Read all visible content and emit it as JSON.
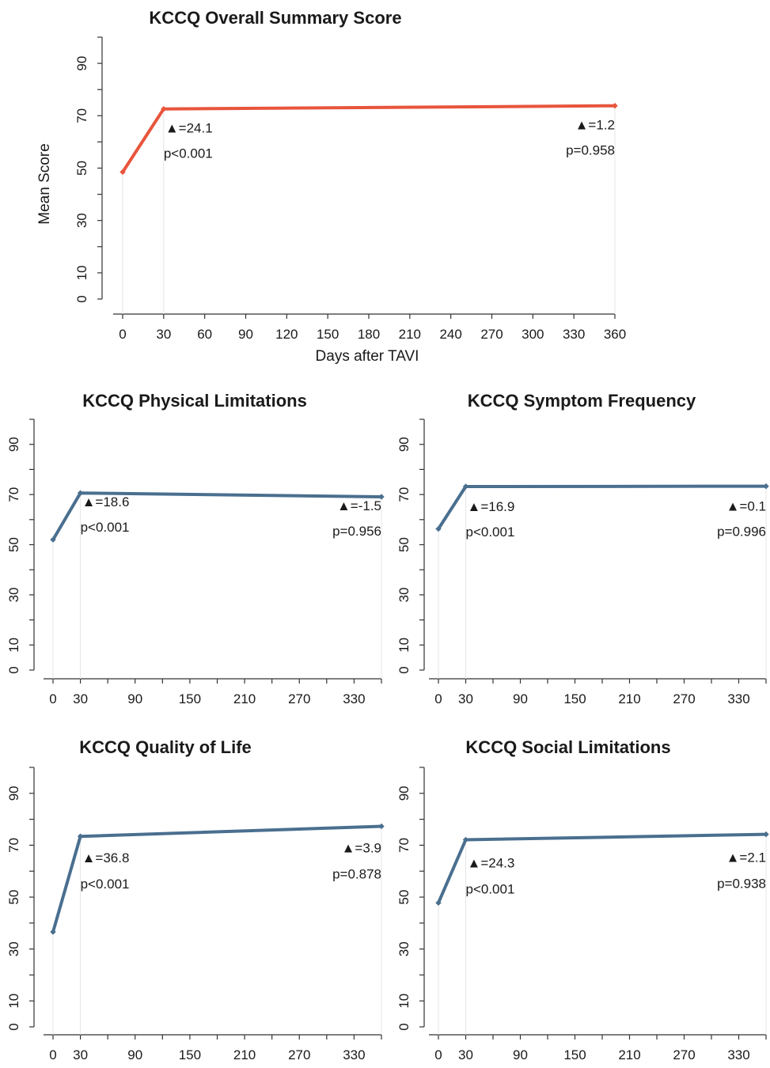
{
  "chart_data": [
    {
      "id": "overall",
      "type": "line",
      "title": "KCCQ Overall Summary Score",
      "xlabel": "Days after TAVI",
      "ylabel": "Mean Score",
      "x_ticks": [
        0,
        30,
        60,
        90,
        120,
        150,
        180,
        210,
        240,
        270,
        300,
        330,
        360
      ],
      "y_ticks": [
        0,
        10,
        30,
        50,
        70,
        90
      ],
      "xlim": [
        0,
        360
      ],
      "ylim": [
        0,
        100
      ],
      "color": "#e8553c",
      "points": [
        {
          "x": 0,
          "y": 48.5
        },
        {
          "x": 30,
          "y": 72.6
        },
        {
          "x": 360,
          "y": 73.8
        }
      ],
      "annotations": [
        {
          "x": 30,
          "delta": "▲=24.1",
          "p": "p<0.001",
          "align": "start"
        },
        {
          "x": 360,
          "delta": "▲=1.2",
          "p": "p=0.958",
          "align": "end"
        }
      ]
    },
    {
      "id": "physical",
      "type": "line",
      "title": "KCCQ Physical Limitations",
      "xlabel": "",
      "ylabel": "",
      "x_ticks": [
        0,
        30,
        90,
        150,
        210,
        270,
        330
      ],
      "y_ticks": [
        0,
        10,
        30,
        50,
        70,
        90
      ],
      "xlim": [
        0,
        360
      ],
      "ylim": [
        0,
        100
      ],
      "color": "#4a6f8f",
      "points": [
        {
          "x": 0,
          "y": 52
        },
        {
          "x": 30,
          "y": 70.6
        },
        {
          "x": 360,
          "y": 69.1
        }
      ],
      "annotations": [
        {
          "x": 30,
          "delta": "▲=18.6",
          "p": "p<0.001",
          "align": "start"
        },
        {
          "x": 360,
          "delta": "▲=-1.5",
          "p": "p=0.956",
          "align": "end"
        }
      ]
    },
    {
      "id": "symptom",
      "type": "line",
      "title": "KCCQ Symptom Frequency",
      "xlabel": "",
      "ylabel": "",
      "x_ticks": [
        0,
        30,
        90,
        150,
        210,
        270,
        330
      ],
      "y_ticks": [
        0,
        10,
        30,
        50,
        70,
        90
      ],
      "xlim": [
        0,
        360
      ],
      "ylim": [
        0,
        100
      ],
      "color": "#4a6f8f",
      "points": [
        {
          "x": 0,
          "y": 56.3
        },
        {
          "x": 30,
          "y": 73.2
        },
        {
          "x": 360,
          "y": 73.3
        }
      ],
      "annotations": [
        {
          "x": 30,
          "delta": "▲=16.9",
          "p": "p<0.001",
          "align": "start"
        },
        {
          "x": 360,
          "delta": "▲=0.1",
          "p": "p=0.996",
          "align": "end"
        }
      ]
    },
    {
      "id": "qol",
      "type": "line",
      "title": "KCCQ Quality of Life",
      "xlabel": "",
      "ylabel": "",
      "x_ticks": [
        0,
        30,
        90,
        150,
        210,
        270,
        330
      ],
      "y_ticks": [
        0,
        10,
        30,
        50,
        70,
        90
      ],
      "xlim": [
        0,
        360
      ],
      "ylim": [
        0,
        100
      ],
      "color": "#4a6f8f",
      "points": [
        {
          "x": 0,
          "y": 36.6
        },
        {
          "x": 30,
          "y": 73.4
        },
        {
          "x": 360,
          "y": 77.3
        }
      ],
      "annotations": [
        {
          "x": 30,
          "delta": "▲=36.8",
          "p": "p<0.001",
          "align": "start"
        },
        {
          "x": 360,
          "delta": "▲=3.9",
          "p": "p=0.878",
          "align": "end"
        }
      ]
    },
    {
      "id": "social",
      "type": "line",
      "title": "KCCQ Social Limitations",
      "xlabel": "",
      "ylabel": "",
      "x_ticks": [
        0,
        30,
        90,
        150,
        210,
        270,
        330
      ],
      "y_ticks": [
        0,
        10,
        30,
        50,
        70,
        90
      ],
      "xlim": [
        0,
        360
      ],
      "ylim": [
        0,
        100
      ],
      "color": "#4a6f8f",
      "points": [
        {
          "x": 0,
          "y": 47.8
        },
        {
          "x": 30,
          "y": 72.1
        },
        {
          "x": 360,
          "y": 74.2
        }
      ],
      "annotations": [
        {
          "x": 30,
          "delta": "▲=24.3",
          "p": "p<0.001",
          "align": "start"
        },
        {
          "x": 360,
          "delta": "▲=2.1",
          "p": "p=0.938",
          "align": "end"
        }
      ]
    }
  ]
}
